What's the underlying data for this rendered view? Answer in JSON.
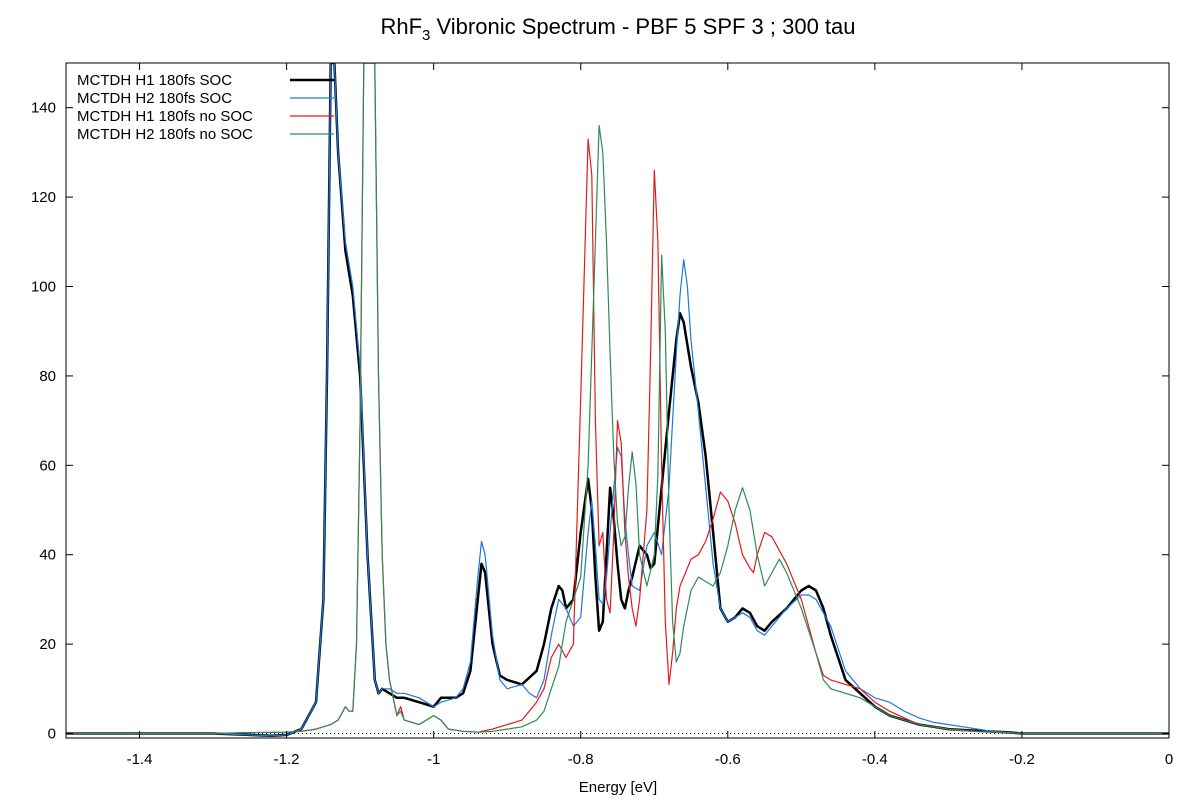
{
  "chart_data": {
    "type": "line",
    "title": "RhF",
    "title_subscript": "3",
    "title_rest": " Vibronic Spectrum - PBF 5 SPF 3 ; 300 tau",
    "xlabel": "Energy [eV]",
    "ylabel": "",
    "xlim": [
      -1.5,
      0
    ],
    "ylim": [
      -1,
      150
    ],
    "xticks": [
      -1.4,
      -1.2,
      -1,
      -0.8,
      -0.6,
      -0.4,
      -0.2,
      0
    ],
    "xtick_labels": [
      "-1.4",
      "-1.2",
      "-1",
      "-0.8",
      "-0.6",
      "-0.4",
      "-0.2",
      "0"
    ],
    "yticks": [
      0,
      20,
      40,
      60,
      80,
      100,
      120,
      140
    ],
    "ytick_labels": [
      "0",
      "20",
      "40",
      "60",
      "80",
      "100",
      "120",
      "140"
    ],
    "grid": false,
    "legend_position": "top-left",
    "zero_line": true,
    "series": [
      {
        "name": "MCTDH H1 180fs SOC",
        "color": "#000000",
        "width": 2.5,
        "x": [
          -1.5,
          -1.3,
          -1.22,
          -1.2,
          -1.18,
          -1.16,
          -1.15,
          -1.145,
          -1.14,
          -1.135,
          -1.13,
          -1.12,
          -1.11,
          -1.1,
          -1.09,
          -1.08,
          -1.075,
          -1.07,
          -1.06,
          -1.05,
          -1.04,
          -1.02,
          -1.0,
          -0.99,
          -0.97,
          -0.96,
          -0.95,
          -0.94,
          -0.935,
          -0.93,
          -0.92,
          -0.91,
          -0.9,
          -0.88,
          -0.86,
          -0.85,
          -0.84,
          -0.83,
          -0.825,
          -0.82,
          -0.81,
          -0.8,
          -0.79,
          -0.785,
          -0.78,
          -0.775,
          -0.77,
          -0.765,
          -0.76,
          -0.755,
          -0.75,
          -0.745,
          -0.74,
          -0.735,
          -0.73,
          -0.72,
          -0.715,
          -0.71,
          -0.705,
          -0.7,
          -0.69,
          -0.68,
          -0.67,
          -0.665,
          -0.66,
          -0.65,
          -0.64,
          -0.63,
          -0.62,
          -0.61,
          -0.6,
          -0.59,
          -0.58,
          -0.57,
          -0.56,
          -0.55,
          -0.54,
          -0.52,
          -0.5,
          -0.49,
          -0.48,
          -0.47,
          -0.46,
          -0.44,
          -0.42,
          -0.4,
          -0.38,
          -0.36,
          -0.34,
          -0.32,
          -0.3,
          -0.28,
          -0.25,
          -0.22,
          -0.2,
          -0.1,
          0
        ],
        "y": [
          0,
          0,
          -0.5,
          -0.3,
          1,
          7,
          30,
          80,
          150,
          150,
          130,
          108,
          98,
          80,
          40,
          12,
          9,
          10,
          9,
          8,
          8,
          7,
          6,
          8,
          8,
          9,
          14,
          30,
          38,
          36,
          20,
          13,
          12,
          11,
          14,
          20,
          28,
          33,
          32,
          28,
          30,
          45,
          57,
          50,
          35,
          23,
          25,
          40,
          55,
          48,
          38,
          30,
          28,
          32,
          35,
          42,
          41,
          40,
          37,
          38,
          55,
          72,
          88,
          94,
          92,
          82,
          74,
          62,
          45,
          28,
          25,
          26,
          28,
          27,
          24,
          23,
          25,
          28,
          32,
          33,
          32,
          28,
          22,
          12,
          9,
          6,
          4,
          3,
          2,
          1.5,
          1,
          0.8,
          0.5,
          0.3,
          0,
          0,
          0
        ]
      },
      {
        "name": "MCTDH H2 180fs SOC",
        "color": "#1c78e0",
        "width": 1.2,
        "x": [
          -1.5,
          -1.3,
          -1.22,
          -1.2,
          -1.18,
          -1.16,
          -1.15,
          -1.145,
          -1.14,
          -1.135,
          -1.13,
          -1.12,
          -1.11,
          -1.1,
          -1.09,
          -1.08,
          -1.075,
          -1.07,
          -1.06,
          -1.05,
          -1.04,
          -1.02,
          -1.0,
          -0.99,
          -0.97,
          -0.96,
          -0.95,
          -0.94,
          -0.935,
          -0.93,
          -0.92,
          -0.91,
          -0.9,
          -0.88,
          -0.87,
          -0.86,
          -0.85,
          -0.84,
          -0.83,
          -0.82,
          -0.81,
          -0.8,
          -0.79,
          -0.785,
          -0.78,
          -0.775,
          -0.77,
          -0.765,
          -0.76,
          -0.755,
          -0.75,
          -0.745,
          -0.74,
          -0.735,
          -0.73,
          -0.72,
          -0.71,
          -0.7,
          -0.69,
          -0.68,
          -0.675,
          -0.67,
          -0.665,
          -0.66,
          -0.655,
          -0.65,
          -0.64,
          -0.63,
          -0.62,
          -0.61,
          -0.6,
          -0.59,
          -0.58,
          -0.57,
          -0.56,
          -0.55,
          -0.54,
          -0.52,
          -0.5,
          -0.49,
          -0.48,
          -0.46,
          -0.44,
          -0.42,
          -0.4,
          -0.38,
          -0.36,
          -0.34,
          -0.32,
          -0.3,
          -0.28,
          -0.26,
          -0.24,
          -0.22,
          -0.2,
          -0.1,
          0
        ],
        "y": [
          0,
          0,
          -0.5,
          -0.3,
          1,
          7,
          30,
          80,
          150,
          150,
          130,
          110,
          100,
          82,
          40,
          12,
          9,
          10,
          10,
          9,
          9,
          8,
          6,
          7,
          8,
          10,
          16,
          35,
          43,
          40,
          22,
          12,
          10,
          11,
          9,
          8,
          12,
          22,
          30,
          28,
          24,
          26,
          45,
          52,
          42,
          30,
          29,
          35,
          45,
          55,
          64,
          62,
          48,
          40,
          33,
          32,
          42,
          45,
          40,
          55,
          70,
          85,
          98,
          106,
          100,
          88,
          72,
          55,
          38,
          28,
          25,
          26,
          27,
          26,
          23,
          22,
          24,
          28,
          31,
          31,
          30,
          24,
          14,
          10,
          8,
          7,
          5,
          3.5,
          2.5,
          2,
          1.5,
          1,
          0.5,
          0.3,
          0,
          0,
          0
        ]
      },
      {
        "name": "MCTDH H1 180fs no SOC",
        "color": "#e31a1c",
        "width": 1.2,
        "x": [
          -1.5,
          -1.3,
          -1.25,
          -1.2,
          -1.18,
          -1.16,
          -1.14,
          -1.13,
          -1.12,
          -1.115,
          -1.11,
          -1.105,
          -1.1,
          -1.095,
          -1.09,
          -1.085,
          -1.08,
          -1.075,
          -1.07,
          -1.065,
          -1.06,
          -1.05,
          -1.045,
          -1.04,
          -1.02,
          -1.0,
          -0.99,
          -0.98,
          -0.96,
          -0.94,
          -0.92,
          -0.9,
          -0.88,
          -0.86,
          -0.85,
          -0.84,
          -0.83,
          -0.82,
          -0.81,
          -0.8,
          -0.79,
          -0.785,
          -0.78,
          -0.775,
          -0.77,
          -0.765,
          -0.76,
          -0.755,
          -0.75,
          -0.745,
          -0.74,
          -0.735,
          -0.73,
          -0.725,
          -0.72,
          -0.71,
          -0.705,
          -0.7,
          -0.695,
          -0.69,
          -0.685,
          -0.68,
          -0.675,
          -0.67,
          -0.665,
          -0.66,
          -0.65,
          -0.64,
          -0.63,
          -0.62,
          -0.61,
          -0.6,
          -0.59,
          -0.58,
          -0.57,
          -0.565,
          -0.56,
          -0.55,
          -0.54,
          -0.53,
          -0.52,
          -0.5,
          -0.48,
          -0.47,
          -0.46,
          -0.44,
          -0.42,
          -0.4,
          -0.38,
          -0.36,
          -0.34,
          -0.32,
          -0.3,
          -0.28,
          -0.26,
          -0.24,
          -0.22,
          -0.2,
          -0.1,
          0
        ],
        "y": [
          0,
          0,
          0.2,
          0.3,
          0.5,
          1,
          2,
          3,
          6,
          5,
          5,
          20,
          70,
          150,
          150,
          150,
          150,
          80,
          40,
          20,
          12,
          4,
          6,
          3,
          2,
          4,
          3,
          1,
          0.5,
          0.3,
          1,
          2,
          3,
          7,
          10,
          17,
          20,
          17,
          20,
          75,
          133,
          125,
          70,
          42,
          45,
          30,
          27,
          45,
          70,
          65,
          45,
          35,
          28,
          24,
          30,
          50,
          85,
          126,
          110,
          60,
          25,
          11,
          18,
          28,
          33,
          35,
          39,
          40,
          43,
          48,
          54,
          52,
          47,
          40,
          37,
          36,
          40,
          45,
          44,
          41,
          38,
          30,
          18,
          13,
          12,
          11,
          10,
          7,
          5,
          3.5,
          2,
          1.5,
          1,
          0.8,
          0.5,
          0.3,
          0.2,
          0,
          0,
          0
        ]
      },
      {
        "name": "MCTDH H2 180fs no SOC",
        "color": "#2e8b57",
        "width": 1.2,
        "x": [
          -1.5,
          -1.3,
          -1.25,
          -1.2,
          -1.18,
          -1.16,
          -1.14,
          -1.13,
          -1.12,
          -1.115,
          -1.11,
          -1.105,
          -1.1,
          -1.095,
          -1.09,
          -1.085,
          -1.08,
          -1.075,
          -1.07,
          -1.065,
          -1.06,
          -1.05,
          -1.045,
          -1.04,
          -1.02,
          -1.0,
          -0.99,
          -0.98,
          -0.96,
          -0.94,
          -0.92,
          -0.9,
          -0.88,
          -0.86,
          -0.85,
          -0.84,
          -0.83,
          -0.82,
          -0.81,
          -0.8,
          -0.79,
          -0.78,
          -0.775,
          -0.77,
          -0.765,
          -0.76,
          -0.755,
          -0.75,
          -0.745,
          -0.74,
          -0.735,
          -0.73,
          -0.725,
          -0.72,
          -0.71,
          -0.7,
          -0.695,
          -0.69,
          -0.685,
          -0.68,
          -0.675,
          -0.67,
          -0.665,
          -0.66,
          -0.65,
          -0.64,
          -0.63,
          -0.62,
          -0.61,
          -0.6,
          -0.59,
          -0.58,
          -0.57,
          -0.56,
          -0.55,
          -0.54,
          -0.53,
          -0.52,
          -0.5,
          -0.48,
          -0.47,
          -0.46,
          -0.44,
          -0.42,
          -0.4,
          -0.38,
          -0.36,
          -0.34,
          -0.32,
          -0.3,
          -0.28,
          -0.26,
          -0.24,
          -0.22,
          -0.2,
          -0.1,
          0
        ],
        "y": [
          0,
          0,
          0.2,
          0.3,
          0.5,
          1,
          2,
          3,
          6,
          5,
          5,
          20,
          70,
          150,
          150,
          150,
          150,
          80,
          40,
          20,
          12,
          4,
          5,
          3,
          2,
          4,
          3,
          1,
          0.5,
          0.3,
          0.5,
          1,
          1.5,
          3,
          5,
          10,
          15,
          25,
          30,
          35,
          60,
          110,
          136,
          130,
          110,
          85,
          62,
          47,
          42,
          44,
          55,
          63,
          56,
          40,
          33,
          40,
          58,
          107,
          90,
          50,
          25,
          16,
          18,
          24,
          32,
          35,
          34,
          33,
          36,
          42,
          50,
          55,
          50,
          40,
          33,
          36,
          39,
          36,
          28,
          18,
          12,
          10,
          9,
          8,
          6,
          4,
          3,
          2,
          1.5,
          1,
          0.6,
          0.4,
          0.3,
          0.2,
          0,
          0,
          0
        ]
      }
    ]
  }
}
